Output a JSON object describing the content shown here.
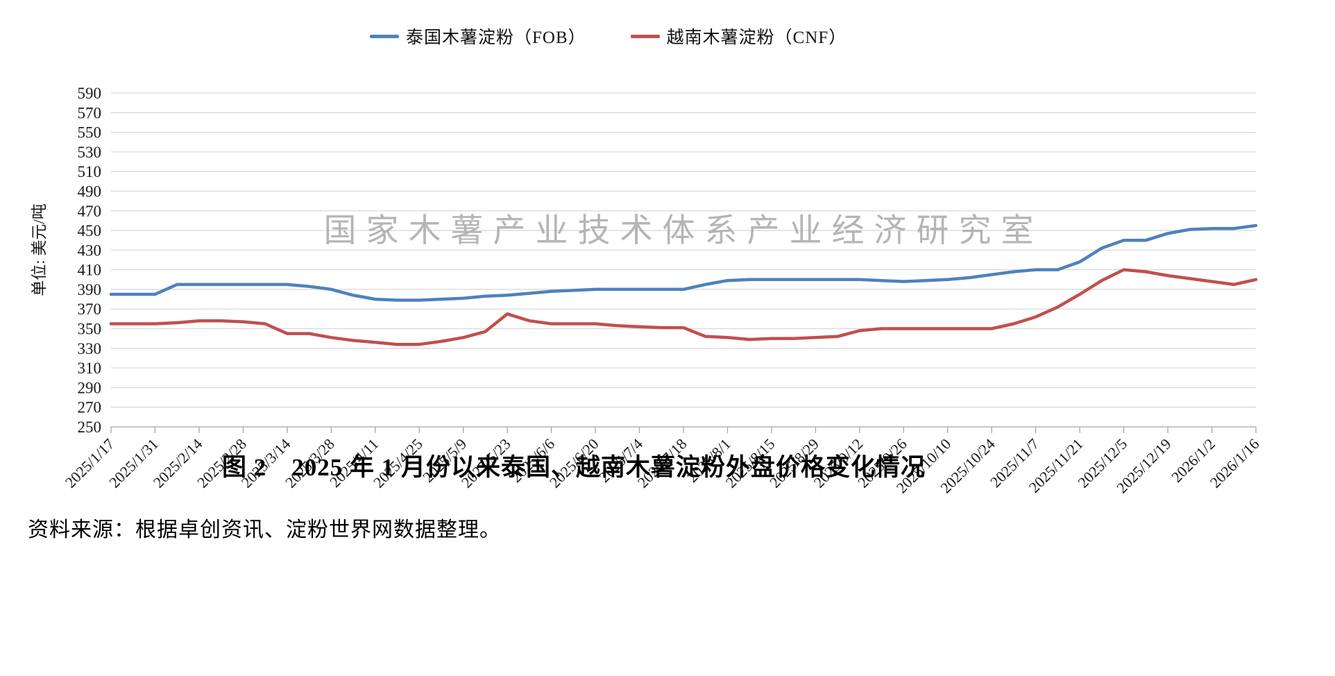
{
  "caption": {
    "title": "图 2　2025 年 1 月份以来泰国、越南木薯淀粉外盘价格变化情况"
  },
  "source": "资料来源：根据卓创资讯、淀粉世界网数据整理。",
  "watermark": "国家木薯产业技术体系产业经济研究室",
  "chart_data": {
    "type": "line",
    "title": "",
    "unit_label": "单位: 美元/吨",
    "xlabel": "",
    "ylabel": "单位: 美元/吨",
    "ylim": [
      250,
      590
    ],
    "y_step": 20,
    "grid": true,
    "legend_position": "top",
    "x_label_every": 2,
    "x": [
      "2025/1/17",
      "2025/1/24",
      "2025/1/31",
      "2025/2/7",
      "2025/2/14",
      "2025/2/21",
      "2025/2/28",
      "2025/3/7",
      "2025/3/14",
      "2025/3/21",
      "2025/3/28",
      "2025/4/4",
      "2025/4/11",
      "2025/4/18",
      "2025/4/25",
      "2025/5/2",
      "2025/5/9",
      "2025/5/16",
      "2025/5/23",
      "2025/5/30",
      "2025/6/6",
      "2025/6/13",
      "2025/6/20",
      "2025/6/27",
      "2025/7/4",
      "2025/7/11",
      "2025/7/18",
      "2025/7/25",
      "2025/8/1",
      "2025/8/8",
      "2025/8/15",
      "2025/8/22",
      "2025/8/29",
      "2025/9/5",
      "2025/9/12",
      "2025/9/19",
      "2025/9/26",
      "2025/10/3",
      "2025/10/10",
      "2025/10/17",
      "2025/10/24",
      "2025/10/31",
      "2025/11/7",
      "2025/11/14",
      "2025/11/21",
      "2025/11/28",
      "2025/12/5",
      "2025/12/12",
      "2025/12/19",
      "2025/12/26",
      "2026/1/2",
      "2026/1/9",
      "2026/1/16"
    ],
    "series": [
      {
        "name": "泰国木薯淀粉（FOB）",
        "color": "#4f81bd",
        "values": [
          385,
          385,
          385,
          395,
          395,
          395,
          395,
          395,
          395,
          393,
          390,
          384,
          380,
          379,
          379,
          380,
          381,
          383,
          384,
          386,
          388,
          389,
          390,
          390,
          390,
          390,
          390,
          395,
          399,
          400,
          400,
          400,
          400,
          400,
          400,
          399,
          398,
          399,
          400,
          402,
          405,
          408,
          410,
          410,
          418,
          432,
          440,
          440,
          447,
          451,
          452,
          452,
          455
        ]
      },
      {
        "name": "越南木薯淀粉（CNF）",
        "color": "#c0504d",
        "values": [
          355,
          355,
          355,
          356,
          358,
          358,
          357,
          355,
          345,
          345,
          341,
          338,
          336,
          334,
          334,
          337,
          341,
          347,
          365,
          358,
          355,
          355,
          355,
          353,
          352,
          351,
          351,
          342,
          341,
          339,
          340,
          340,
          341,
          342,
          348,
          350,
          350,
          350,
          350,
          350,
          350,
          355,
          362,
          372,
          385,
          399,
          410,
          408,
          404,
          401,
          398,
          395,
          400
        ]
      }
    ],
    "axis_colors": {
      "grid": "#d9d9d9",
      "axis": "#a6a6a6",
      "tick_text": "#1a1a1a"
    },
    "watermark_color": "#a9a9a9"
  }
}
